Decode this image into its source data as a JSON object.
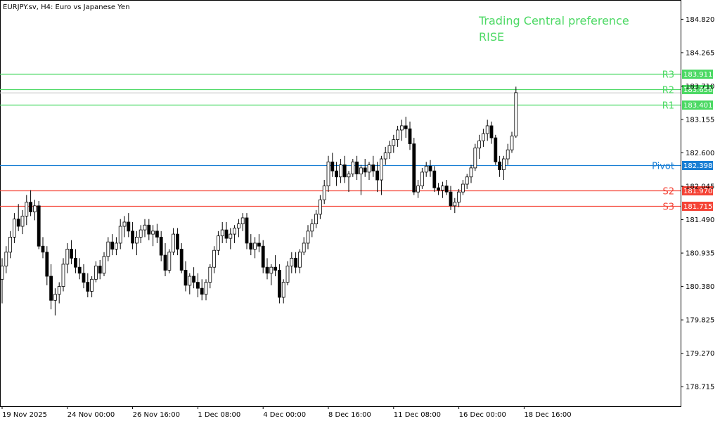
{
  "header": {
    "symbol_text": "EURJPY.sv, H4:  Euro vs Japanese Yen"
  },
  "preference": {
    "line1": "Trading Central preference",
    "line2": "RISE",
    "color": "#4cd964"
  },
  "colors": {
    "resistance": "#4cd964",
    "pivot": "#1a7fd4",
    "support": "#f44336",
    "candle_up": "#ffffff",
    "candle_down": "#000000",
    "current_price_line": "#c8c8c8"
  },
  "chart_data": {
    "type": "candlestick",
    "ylim": [
      178.39,
      185.14
    ],
    "y_ticks": [
      "184.820",
      "184.265",
      "183.710",
      "183.155",
      "182.600",
      "182.045",
      "181.490",
      "180.935",
      "180.380",
      "179.825",
      "179.270",
      "178.715"
    ],
    "x_tick_labels": [
      "19 Nov 2025",
      "24 Nov 00:00",
      "26 Nov 16:00",
      "1 Dec 08:00",
      "4 Dec 00:00",
      "8 Dec 16:00",
      "11 Dec 08:00",
      "16 Dec 00:00",
      "18 Dec 16:00"
    ],
    "x_tick_candle_index": [
      0,
      16,
      32,
      48,
      64,
      80,
      96,
      112,
      128
    ],
    "current_price": 183.656,
    "levels": [
      {
        "name": "R3",
        "value": 183.911,
        "label": "183.911",
        "kind": "resistance"
      },
      {
        "name": "R2",
        "value": 183.656,
        "label": "183.656",
        "kind": "resistance"
      },
      {
        "name": "R1",
        "value": 183.401,
        "label": "183.401",
        "kind": "resistance"
      },
      {
        "name": "Pivot",
        "value": 182.398,
        "label": "182.398",
        "kind": "pivot"
      },
      {
        "name": "S2",
        "value": 181.97,
        "label": "181.970",
        "kind": "support"
      },
      {
        "name": "S3",
        "value": 181.715,
        "label": "181.715",
        "kind": "support"
      }
    ],
    "candles": [
      [
        180.5,
        180.85,
        180.1,
        180.72
      ],
      [
        180.72,
        181.05,
        180.6,
        180.95
      ],
      [
        180.95,
        181.3,
        180.85,
        181.2
      ],
      [
        181.2,
        181.6,
        181.1,
        181.5
      ],
      [
        181.5,
        181.75,
        181.3,
        181.38
      ],
      [
        181.38,
        181.65,
        181.25,
        181.55
      ],
      [
        181.55,
        181.9,
        181.4,
        181.78
      ],
      [
        181.78,
        181.98,
        181.55,
        181.62
      ],
      [
        181.62,
        181.82,
        181.48,
        181.72
      ],
      [
        181.72,
        181.8,
        181.0,
        181.05
      ],
      [
        181.05,
        181.2,
        180.85,
        180.95
      ],
      [
        180.95,
        181.05,
        180.4,
        180.55
      ],
      [
        180.55,
        180.75,
        180.0,
        180.15
      ],
      [
        180.15,
        180.35,
        179.9,
        180.25
      ],
      [
        180.25,
        180.45,
        180.1,
        180.38
      ],
      [
        180.38,
        180.85,
        180.3,
        180.75
      ],
      [
        180.75,
        181.1,
        180.6,
        181.0
      ],
      [
        181.0,
        181.15,
        180.75,
        180.85
      ],
      [
        180.85,
        181.0,
        180.6,
        180.7
      ],
      [
        180.7,
        180.85,
        180.5,
        180.6
      ],
      [
        180.6,
        180.75,
        180.35,
        180.45
      ],
      [
        180.45,
        180.6,
        180.2,
        180.3
      ],
      [
        180.3,
        180.55,
        180.2,
        180.5
      ],
      [
        180.5,
        180.8,
        180.45,
        180.72
      ],
      [
        180.72,
        180.82,
        180.5,
        180.6
      ],
      [
        180.6,
        180.95,
        180.55,
        180.88
      ],
      [
        180.88,
        181.2,
        180.8,
        181.12
      ],
      [
        181.12,
        181.25,
        180.9,
        181.0
      ],
      [
        181.0,
        181.2,
        180.9,
        181.1
      ],
      [
        181.1,
        181.5,
        181.0,
        181.38
      ],
      [
        181.38,
        181.55,
        181.2,
        181.45
      ],
      [
        181.45,
        181.6,
        181.2,
        181.3
      ],
      [
        181.3,
        181.45,
        181.0,
        181.1
      ],
      [
        181.1,
        181.3,
        180.9,
        181.2
      ],
      [
        181.2,
        181.4,
        181.1,
        181.32
      ],
      [
        181.32,
        181.5,
        181.2,
        181.4
      ],
      [
        181.4,
        181.5,
        181.15,
        181.25
      ],
      [
        181.25,
        181.4,
        181.05,
        181.3
      ],
      [
        181.3,
        181.42,
        181.1,
        181.2
      ],
      [
        181.2,
        181.3,
        180.8,
        180.9
      ],
      [
        180.9,
        181.1,
        180.55,
        180.65
      ],
      [
        180.65,
        181.0,
        180.6,
        180.95
      ],
      [
        180.95,
        181.35,
        180.9,
        181.25
      ],
      [
        181.25,
        181.35,
        180.9,
        181.0
      ],
      [
        181.0,
        181.1,
        180.6,
        180.65
      ],
      [
        180.65,
        180.8,
        180.3,
        180.4
      ],
      [
        180.4,
        180.6,
        180.25,
        180.55
      ],
      [
        180.55,
        180.7,
        180.35,
        180.45
      ],
      [
        180.45,
        180.6,
        180.2,
        180.35
      ],
      [
        180.35,
        180.5,
        180.15,
        180.25
      ],
      [
        180.25,
        180.5,
        180.15,
        180.45
      ],
      [
        180.45,
        180.75,
        180.35,
        180.7
      ],
      [
        180.7,
        181.05,
        180.6,
        180.98
      ],
      [
        180.98,
        181.3,
        180.9,
        181.22
      ],
      [
        181.22,
        181.45,
        181.1,
        181.32
      ],
      [
        181.32,
        181.45,
        181.1,
        181.18
      ],
      [
        181.18,
        181.35,
        181.0,
        181.25
      ],
      [
        181.25,
        181.4,
        181.1,
        181.35
      ],
      [
        181.35,
        181.5,
        181.2,
        181.42
      ],
      [
        181.42,
        181.6,
        181.3,
        181.52
      ],
      [
        181.52,
        181.6,
        181.0,
        181.1
      ],
      [
        181.1,
        181.25,
        180.9,
        181.0
      ],
      [
        181.0,
        181.2,
        180.85,
        181.1
      ],
      [
        181.1,
        181.25,
        180.95,
        181.05
      ],
      [
        181.05,
        181.15,
        180.6,
        180.7
      ],
      [
        180.7,
        180.85,
        180.5,
        180.6
      ],
      [
        180.6,
        180.75,
        180.4,
        180.7
      ],
      [
        180.7,
        180.9,
        180.55,
        180.65
      ],
      [
        180.65,
        180.75,
        180.1,
        180.2
      ],
      [
        180.2,
        180.5,
        180.1,
        180.45
      ],
      [
        180.45,
        180.8,
        180.4,
        180.72
      ],
      [
        180.72,
        180.95,
        180.6,
        180.85
      ],
      [
        180.85,
        180.95,
        180.6,
        180.7
      ],
      [
        180.7,
        181.0,
        180.6,
        180.95
      ],
      [
        180.95,
        181.2,
        180.9,
        181.1
      ],
      [
        181.1,
        181.4,
        181.0,
        181.3
      ],
      [
        181.3,
        181.5,
        181.2,
        181.42
      ],
      [
        181.42,
        181.65,
        181.35,
        181.58
      ],
      [
        181.58,
        181.9,
        181.5,
        181.82
      ],
      [
        181.82,
        182.15,
        181.75,
        182.05
      ],
      [
        182.05,
        182.55,
        181.95,
        182.45
      ],
      [
        182.45,
        182.6,
        182.2,
        182.3
      ],
      [
        182.3,
        182.45,
        182.05,
        182.2
      ],
      [
        182.2,
        182.5,
        182.1,
        182.4
      ],
      [
        182.4,
        182.55,
        182.1,
        182.2
      ],
      [
        182.2,
        182.3,
        181.95,
        182.25
      ],
      [
        182.25,
        182.5,
        182.2,
        182.45
      ],
      [
        182.45,
        182.55,
        182.15,
        182.25
      ],
      [
        182.25,
        182.4,
        181.9,
        182.35
      ],
      [
        182.35,
        182.5,
        182.2,
        182.28
      ],
      [
        182.28,
        182.45,
        182.15,
        182.4
      ],
      [
        182.4,
        182.55,
        182.2,
        182.3
      ],
      [
        182.3,
        182.45,
        181.95,
        182.15
      ],
      [
        182.15,
        182.55,
        181.9,
        182.5
      ],
      [
        182.5,
        182.7,
        182.4,
        182.6
      ],
      [
        182.6,
        182.8,
        182.5,
        182.72
      ],
      [
        182.72,
        182.9,
        182.6,
        182.82
      ],
      [
        182.82,
        183.05,
        182.7,
        182.98
      ],
      [
        182.98,
        183.15,
        182.8,
        183.05
      ],
      [
        183.05,
        183.2,
        182.85,
        183.0
      ],
      [
        183.0,
        183.12,
        182.65,
        182.75
      ],
      [
        182.75,
        182.85,
        181.9,
        181.95
      ],
      [
        181.95,
        182.15,
        181.85,
        182.05
      ],
      [
        182.05,
        182.35,
        182.0,
        182.28
      ],
      [
        182.28,
        182.45,
        182.2,
        182.38
      ],
      [
        182.38,
        182.48,
        182.2,
        182.3
      ],
      [
        182.3,
        182.38,
        181.95,
        182.02
      ],
      [
        182.02,
        182.1,
        181.9,
        181.98
      ],
      [
        181.98,
        182.12,
        181.85,
        182.05
      ],
      [
        182.05,
        182.15,
        181.9,
        181.95
      ],
      [
        181.95,
        182.05,
        181.65,
        181.72
      ],
      [
        181.72,
        181.85,
        181.6,
        181.78
      ],
      [
        181.78,
        182.0,
        181.7,
        181.95
      ],
      [
        181.95,
        182.15,
        181.9,
        182.08
      ],
      [
        182.08,
        182.25,
        182.0,
        182.2
      ],
      [
        182.2,
        182.4,
        182.1,
        182.35
      ],
      [
        182.35,
        182.75,
        182.3,
        182.68
      ],
      [
        182.68,
        182.9,
        182.5,
        182.8
      ],
      [
        182.8,
        183.0,
        182.7,
        182.92
      ],
      [
        182.92,
        183.15,
        182.8,
        183.05
      ],
      [
        183.05,
        183.12,
        182.75,
        182.85
      ],
      [
        182.85,
        182.9,
        182.4,
        182.45
      ],
      [
        182.45,
        182.55,
        182.2,
        182.32
      ],
      [
        182.32,
        182.55,
        182.15,
        182.5
      ],
      [
        182.5,
        182.75,
        182.4,
        182.65
      ],
      [
        182.65,
        182.95,
        182.6,
        182.88
      ],
      [
        182.88,
        183.7,
        182.85,
        183.6
      ]
    ]
  }
}
